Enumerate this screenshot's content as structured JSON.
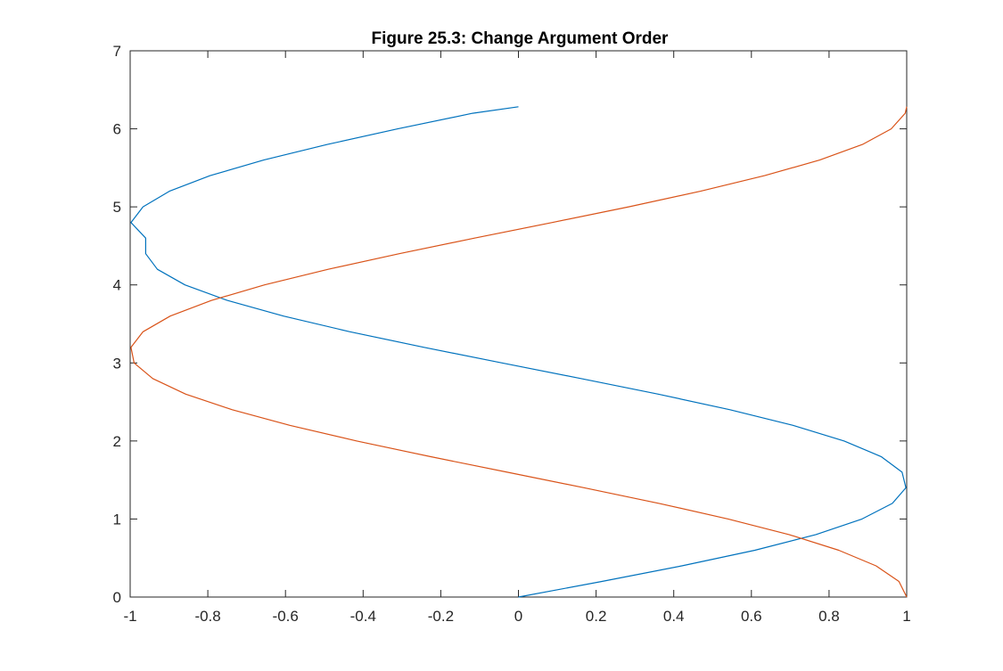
{
  "chart_data": {
    "type": "line",
    "title": "Figure 25.3: Change Argument Order",
    "xlabel": "",
    "ylabel": "",
    "xlim": [
      -1,
      1
    ],
    "ylim": [
      0,
      7
    ],
    "xticks": [
      "-1",
      "-0.8",
      "-0.6",
      "-0.4",
      "-0.2",
      "0",
      "0.2",
      "0.4",
      "0.6",
      "0.8",
      "1"
    ],
    "yticks": [
      "0",
      "1",
      "2",
      "3",
      "4",
      "5",
      "6",
      "7"
    ],
    "grid": false,
    "legend": "none",
    "series": [
      {
        "color": "#0072BD",
        "x": [
          0,
          0.215,
          0.421,
          0.609,
          0.766,
          0.885,
          0.963,
          0.998,
          0.988,
          0.934,
          0.839,
          0.707,
          0.545,
          0.36,
          0.161,
          -0.042,
          -0.243,
          -0.434,
          -0.605,
          -0.749,
          -0.859,
          -0.93,
          -0.96,
          -0.96,
          -0.998,
          -0.967,
          -0.899,
          -0.794,
          -0.656,
          -0.492,
          -0.311,
          -0.118,
          0
        ],
        "y": [
          0,
          0.2,
          0.4,
          0.6,
          0.8,
          1.0,
          1.2,
          1.4,
          1.6,
          1.8,
          2.0,
          2.2,
          2.4,
          2.6,
          2.8,
          3.0,
          3.2,
          3.4,
          3.6,
          3.8,
          4.0,
          4.2,
          4.4,
          4.6,
          4.8,
          5.0,
          5.2,
          5.4,
          5.6,
          5.8,
          6.0,
          6.2,
          6.283
        ]
      },
      {
        "color": "#D95319",
        "x": [
          1,
          0.98,
          0.921,
          0.825,
          0.697,
          0.54,
          0.362,
          0.17,
          -0.029,
          -0.227,
          -0.416,
          -0.589,
          -0.737,
          -0.857,
          -0.942,
          -0.99,
          -0.998,
          -0.967,
          -0.897,
          -0.791,
          -0.654,
          -0.49,
          -0.307,
          -0.113,
          0.087,
          0.284,
          0.469,
          0.634,
          0.776,
          0.886,
          0.96,
          0.996,
          1
        ],
        "y": [
          0,
          0.2,
          0.4,
          0.6,
          0.8,
          1.0,
          1.2,
          1.4,
          1.6,
          1.8,
          2.0,
          2.2,
          2.4,
          2.6,
          2.8,
          3.0,
          3.2,
          3.4,
          3.6,
          3.8,
          4.0,
          4.2,
          4.4,
          4.6,
          4.8,
          5.0,
          5.2,
          5.4,
          5.6,
          5.8,
          6.0,
          6.2,
          6.283
        ]
      }
    ]
  }
}
